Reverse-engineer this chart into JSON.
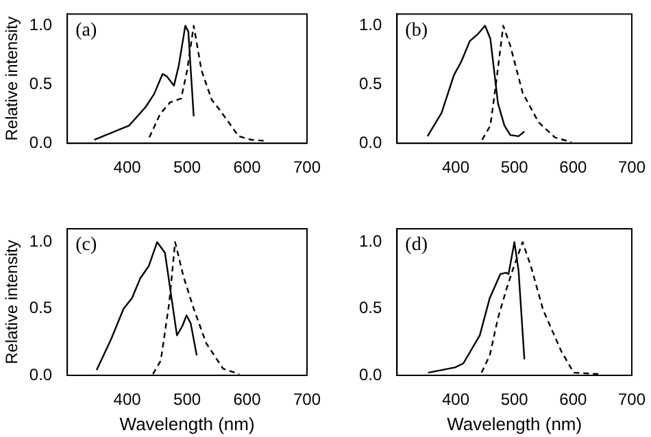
{
  "chart_data": [
    {
      "type": "line",
      "ylabel": "Relative intensity",
      "annotations": [
        "(a)"
      ],
      "xlim": [
        300,
        700
      ],
      "xticks": [
        400,
        500,
        600,
        700
      ],
      "ylim": [
        0,
        1.1
      ],
      "yticks": [
        {
          "value": 0,
          "label": "0.0"
        },
        {
          "value": 0.5,
          "label": "0.5"
        },
        {
          "value": 1,
          "label": "1.0"
        }
      ],
      "grid": false,
      "legend": false,
      "marker": "none",
      "series": [
        {
          "color": "#000000",
          "line_style": "solid",
          "x": [
            345,
            403,
            431,
            445,
            459,
            466,
            478,
            486,
            497,
            502,
            511
          ],
          "values": [
            0.03,
            0.15,
            0.31,
            0.42,
            0.59,
            0.57,
            0.49,
            0.66,
            1.0,
            0.95,
            0.23
          ]
        },
        {
          "color": "#000000",
          "line_style": "dashed",
          "x": [
            437,
            455,
            472,
            490,
            500,
            511,
            524,
            541,
            555,
            586,
            607,
            631
          ],
          "values": [
            0.05,
            0.25,
            0.35,
            0.38,
            0.62,
            1.0,
            0.62,
            0.37,
            0.28,
            0.06,
            0.03,
            0.02
          ]
        }
      ]
    },
    {
      "type": "line",
      "annotations": [
        "(b)"
      ],
      "xlim": [
        300,
        700
      ],
      "xticks": [
        400,
        500,
        600,
        700
      ],
      "ylim": [
        0,
        1.1
      ],
      "yticks": [
        {
          "value": 0,
          "label": "0.0"
        },
        {
          "value": 0.5,
          "label": "0.5"
        },
        {
          "value": 1,
          "label": "1.0"
        }
      ],
      "grid": false,
      "legend": false,
      "marker": "none",
      "series": [
        {
          "color": "#000000",
          "line_style": "solid",
          "x": [
            352,
            376,
            397,
            410,
            424,
            438,
            450,
            459,
            472,
            483,
            493,
            507,
            517
          ],
          "values": [
            0.06,
            0.26,
            0.58,
            0.7,
            0.87,
            0.93,
            1.0,
            0.89,
            0.34,
            0.15,
            0.07,
            0.06,
            0.1
          ]
        },
        {
          "color": "#000000",
          "line_style": "dashed",
          "x": [
            445,
            459,
            469,
            481,
            493,
            514,
            541,
            569,
            597
          ],
          "values": [
            0.03,
            0.15,
            0.52,
            1.0,
            0.83,
            0.43,
            0.18,
            0.05,
            0.01
          ]
        }
      ]
    },
    {
      "type": "line",
      "xlabel": "Wavelength (nm)",
      "ylabel": "Relative intensity",
      "annotations": [
        "(c)"
      ],
      "xlim": [
        300,
        700
      ],
      "xticks": [
        400,
        500,
        600,
        700
      ],
      "ylim": [
        0,
        1.1
      ],
      "yticks": [
        {
          "value": 0,
          "label": "0.0"
        },
        {
          "value": 0.5,
          "label": "0.5"
        },
        {
          "value": 1,
          "label": "1.0"
        }
      ],
      "grid": false,
      "legend": false,
      "marker": "none",
      "series": [
        {
          "color": "#000000",
          "line_style": "solid",
          "x": [
            349,
            373,
            394,
            408,
            422,
            436,
            450,
            463,
            474,
            483,
            492,
            499,
            506,
            516
          ],
          "values": [
            0.04,
            0.27,
            0.5,
            0.58,
            0.73,
            0.82,
            1.0,
            0.92,
            0.58,
            0.3,
            0.37,
            0.45,
            0.39,
            0.15
          ]
        },
        {
          "color": "#000000",
          "line_style": "dashed",
          "x": [
            443,
            456,
            470,
            480,
            494,
            511,
            532,
            560,
            587
          ],
          "values": [
            0.01,
            0.11,
            0.54,
            1.0,
            0.74,
            0.5,
            0.24,
            0.05,
            0.01
          ]
        }
      ]
    },
    {
      "type": "line",
      "xlabel": "Wavelength (nm)",
      "annotations": [
        "(d)"
      ],
      "xlim": [
        300,
        700
      ],
      "xticks": [
        400,
        500,
        600,
        700
      ],
      "ylim": [
        0,
        1.1
      ],
      "yticks": [
        {
          "value": 0,
          "label": "0.0"
        },
        {
          "value": 0.5,
          "label": "0.5"
        },
        {
          "value": 1,
          "label": "1.0"
        }
      ],
      "grid": false,
      "legend": false,
      "marker": "none",
      "series": [
        {
          "color": "#000000",
          "line_style": "solid",
          "x": [
            353,
            399,
            413,
            441,
            458,
            476,
            486,
            490,
            500,
            507,
            517
          ],
          "values": [
            0.02,
            0.06,
            0.09,
            0.3,
            0.58,
            0.76,
            0.77,
            0.76,
            1.0,
            0.79,
            0.12
          ]
        },
        {
          "color": "#000000",
          "line_style": "dashed",
          "x": [
            444,
            458,
            472,
            486,
            497,
            514,
            528,
            549,
            580,
            601,
            643
          ],
          "values": [
            0.02,
            0.15,
            0.43,
            0.64,
            0.79,
            1.0,
            0.82,
            0.49,
            0.18,
            0.02,
            0.01
          ]
        }
      ]
    }
  ]
}
